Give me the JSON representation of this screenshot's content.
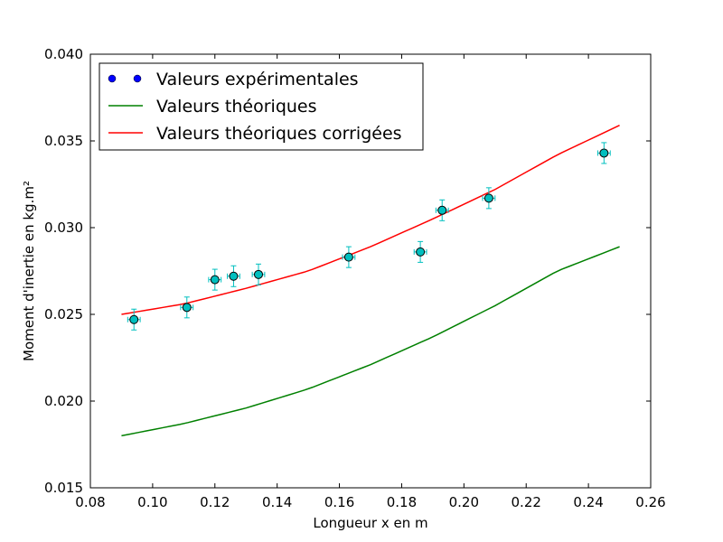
{
  "chart_data": {
    "type": "scatter",
    "title": "",
    "xlabel": "Longueur x en m",
    "ylabel": "Moment d'inertie en kg.m²",
    "xlim": [
      0.08,
      0.26
    ],
    "ylim": [
      0.015,
      0.04
    ],
    "xticks": [
      "0.08",
      "0.10",
      "0.12",
      "0.14",
      "0.16",
      "0.18",
      "0.20",
      "0.22",
      "0.24",
      "0.26"
    ],
    "yticks": [
      "0.015",
      "0.020",
      "0.025",
      "0.030",
      "0.035",
      "0.040"
    ],
    "grid": false,
    "legend_position": "top-left",
    "series": [
      {
        "name": "Valeurs expérimentales",
        "kind": "points_with_errorbars",
        "color": "#00bfbf",
        "legend_color": "#0000ff",
        "x": [
          0.094,
          0.111,
          0.12,
          0.126,
          0.134,
          0.163,
          0.186,
          0.193,
          0.208,
          0.245
        ],
        "y": [
          0.0247,
          0.0254,
          0.027,
          0.0272,
          0.0273,
          0.0283,
          0.0286,
          0.031,
          0.0317,
          0.0343
        ],
        "x_err": 0.002,
        "y_err": 0.0006
      },
      {
        "name": "Valeurs théoriques",
        "kind": "line",
        "color": "#008000",
        "x": [
          0.09,
          0.11,
          0.13,
          0.15,
          0.17,
          0.19,
          0.21,
          0.23,
          0.25
        ],
        "y": [
          0.018,
          0.0187,
          0.0196,
          0.0207,
          0.0221,
          0.0237,
          0.0255,
          0.0275,
          0.0289
        ]
      },
      {
        "name": "Valeurs théoriques corrigées",
        "kind": "line",
        "color": "#ff0000",
        "x": [
          0.09,
          0.11,
          0.13,
          0.15,
          0.17,
          0.19,
          0.21,
          0.23,
          0.25
        ],
        "y": [
          0.025,
          0.0256,
          0.0265,
          0.0275,
          0.0289,
          0.0305,
          0.0322,
          0.0342,
          0.0359
        ]
      }
    ]
  }
}
